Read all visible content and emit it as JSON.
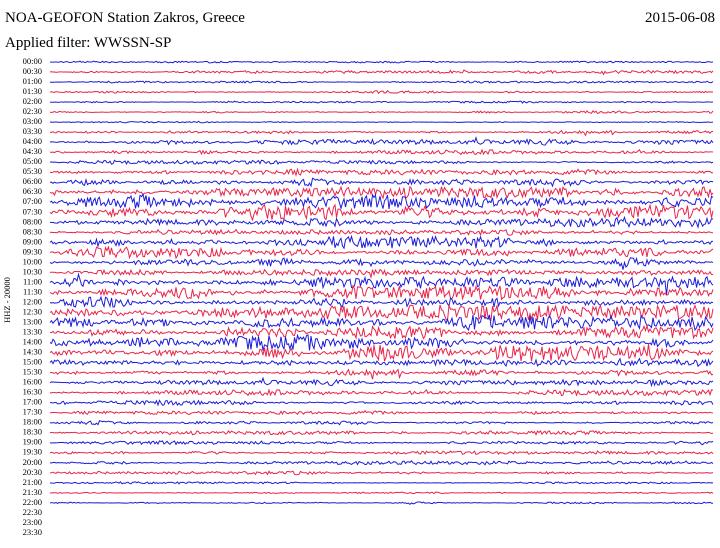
{
  "chart_data": {
    "type": "helicorder",
    "title": "NOA-GEOFON Station Zakros, Greece",
    "date": "2015-06-08",
    "subtitle": "Applied filter: WWSSN-SP",
    "ylabel": "HHZ - 20000",
    "colors": [
      "#1c1cd8",
      "#e8244a"
    ],
    "categories": [
      "00:00",
      "00:30",
      "01:00",
      "01:30",
      "02:00",
      "02:30",
      "03:00",
      "03:30",
      "04:00",
      "04:30",
      "05:00",
      "05:30",
      "06:00",
      "06:30",
      "07:00",
      "07:30",
      "08:00",
      "08:30",
      "09:00",
      "09:30",
      "10:00",
      "10:30",
      "11:00",
      "11:30",
      "12:00",
      "12:30",
      "13:00",
      "13:30",
      "14:00",
      "14:30",
      "15:00",
      "15:30",
      "16:00",
      "16:30",
      "17:00",
      "17:30",
      "18:00",
      "18:30",
      "19:00",
      "19:30",
      "20:00",
      "20:30",
      "21:00",
      "21:30",
      "22:00",
      "22:30",
      "23:00",
      "23:30"
    ],
    "values": [
      1,
      1.5,
      1,
      1.5,
      1,
      1.5,
      1,
      2,
      3,
      2.5,
      2,
      3,
      4,
      6,
      8,
      8,
      5,
      3,
      6,
      6,
      5,
      3,
      6,
      7,
      7,
      8,
      8,
      7,
      8,
      9,
      6,
      4,
      3,
      3,
      3,
      2,
      2,
      2,
      2,
      2,
      2,
      2,
      1,
      1,
      1,
      null,
      null,
      null
    ]
  }
}
